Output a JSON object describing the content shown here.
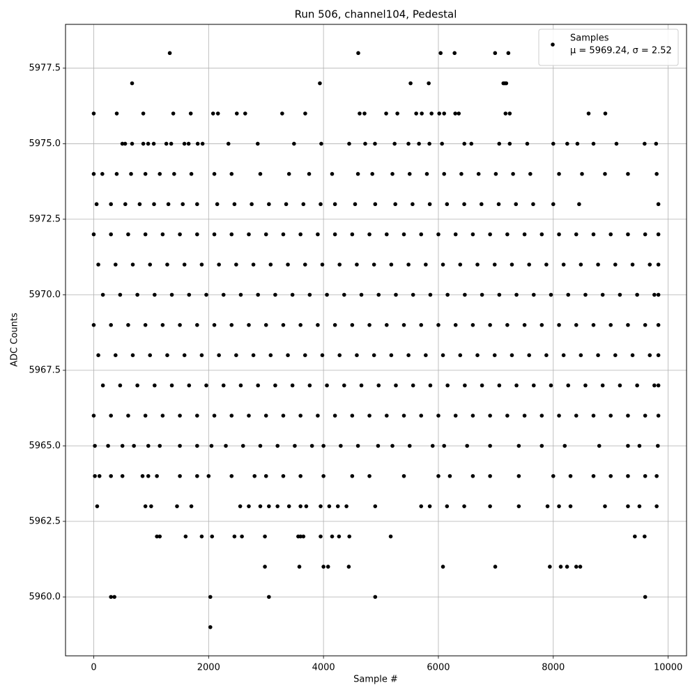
{
  "chart_data": {
    "type": "scatter",
    "title": "Run 506, channel104, Pedestal",
    "xlabel": "Sample #",
    "ylabel": "ADC Counts",
    "xlim": [
      -491,
      10320
    ],
    "ylim": [
      5958.05,
      5978.95
    ],
    "xticks": [
      0,
      2000,
      4000,
      6000,
      8000,
      10000
    ],
    "yticks": [
      {
        "value": 5960,
        "label": "5960.0"
      },
      {
        "value": 5962.5,
        "label": "5962.5"
      },
      {
        "value": 5965,
        "label": "5965.0"
      },
      {
        "value": 5967.5,
        "label": "5967.5"
      },
      {
        "value": 5970,
        "label": "5970.0"
      },
      {
        "value": 5972.5,
        "label": "5972.5"
      },
      {
        "value": 5975,
        "label": "5975.0"
      },
      {
        "value": 5977.5,
        "label": "5977.5"
      }
    ],
    "grid": true,
    "legend": "upper right",
    "legend_stats": "μ = 5969.24, σ = 2.52",
    "series": [
      {
        "name": "Samples",
        "color": "#000000",
        "x": [
          1324,
          4605,
          6039,
          6282,
          6987,
          7218,
          668,
          3937,
          5516,
          5832,
          7132,
          7157,
          7181,
          0,
          401,
          863,
          1385,
          1689,
          2078,
          2163,
          2491,
          2637,
          3281,
          3682,
          4629,
          4714,
          5091,
          5286,
          5614,
          5711,
          5881,
          6015,
          6100,
          6294,
          6355,
          7169,
          7242,
          8615,
          8906,
          498,
          547,
          668,
          863,
          948,
          1045,
          1264,
          1349,
          1579,
          1652,
          1810,
          1895,
          2345,
          2855,
          3487,
          3961,
          4447,
          4726,
          4896,
          5238,
          5479,
          5662,
          5844,
          6063,
          6452,
          6574,
          7059,
          7242,
          7547,
          8000,
          8243,
          8420,
          8700,
          9100,
          9590,
          9790,
          0,
          150,
          400,
          650,
          900,
          1150,
          1400,
          1700,
          2100,
          2400,
          2900,
          3400,
          3750,
          4150,
          4600,
          4850,
          5200,
          5500,
          5800,
          6100,
          6400,
          6700,
          7000,
          7300,
          7600,
          8100,
          8500,
          8900,
          9300,
          9800,
          50,
          300,
          550,
          800,
          1050,
          1300,
          1550,
          1800,
          2150,
          2450,
          2750,
          3050,
          3350,
          3650,
          3950,
          4200,
          4550,
          4900,
          5250,
          5550,
          5850,
          6150,
          6450,
          6750,
          7050,
          7350,
          7650,
          8000,
          8450,
          9830,
          0,
          300,
          600,
          900,
          1200,
          1500,
          1800,
          2100,
          2400,
          2700,
          3000,
          3300,
          3600,
          3900,
          4200,
          4500,
          4800,
          5100,
          5400,
          5700,
          6000,
          6300,
          6600,
          6900,
          7200,
          7500,
          7800,
          8100,
          8400,
          8700,
          9000,
          9300,
          9600,
          9830,
          80,
          380,
          680,
          980,
          1280,
          1580,
          1880,
          2180,
          2480,
          2780,
          3080,
          3380,
          3680,
          3980,
          4280,
          4580,
          4880,
          5180,
          5480,
          5780,
          6080,
          6380,
          6680,
          6980,
          7280,
          7580,
          7880,
          8180,
          8480,
          8780,
          9080,
          9380,
          9680,
          9830,
          160,
          460,
          760,
          1060,
          1360,
          1660,
          1960,
          2260,
          2560,
          2860,
          3160,
          3460,
          3760,
          4060,
          4360,
          4660,
          4960,
          5260,
          5560,
          5860,
          6160,
          6460,
          6760,
          7060,
          7360,
          7660,
          7960,
          8260,
          8560,
          8860,
          9160,
          9460,
          9760,
          9830,
          0,
          300,
          600,
          900,
          1200,
          1500,
          1800,
          2100,
          2400,
          2700,
          3000,
          3300,
          3600,
          3900,
          4200,
          4500,
          4800,
          5100,
          5400,
          5700,
          6000,
          6300,
          6600,
          6900,
          7200,
          7500,
          7800,
          8100,
          8400,
          8700,
          9000,
          9300,
          9600,
          9830,
          80,
          380,
          680,
          980,
          1280,
          1580,
          1880,
          2180,
          2480,
          2780,
          3080,
          3380,
          3680,
          3980,
          4280,
          4580,
          4880,
          5180,
          5480,
          5780,
          6080,
          6380,
          6680,
          6980,
          7280,
          7580,
          7880,
          8180,
          8480,
          8780,
          9080,
          9380,
          9680,
          9830,
          160,
          460,
          760,
          1060,
          1360,
          1660,
          1960,
          2260,
          2560,
          2860,
          3160,
          3460,
          3760,
          4060,
          4360,
          4660,
          4960,
          5260,
          5560,
          5860,
          6160,
          6460,
          6760,
          7060,
          7360,
          7660,
          7960,
          8260,
          8560,
          8860,
          9160,
          9460,
          9760,
          9830,
          0,
          300,
          600,
          900,
          1200,
          1500,
          1800,
          2100,
          2400,
          2700,
          3000,
          3300,
          3600,
          3900,
          4200,
          4500,
          4800,
          5100,
          5400,
          5700,
          6000,
          6300,
          6600,
          6900,
          7200,
          7500,
          7800,
          8100,
          8400,
          8700,
          9000,
          9300,
          9600,
          9830,
          20,
          250,
          500,
          700,
          950,
          1150,
          1500,
          1800,
          2050,
          2300,
          2600,
          2900,
          3200,
          3500,
          3800,
          4000,
          4300,
          4600,
          4950,
          5200,
          5500,
          5900,
          6100,
          6500,
          6900,
          7400,
          7800,
          8200,
          8800,
          9300,
          9500,
          9820,
          20,
          100,
          300,
          500,
          850,
          950,
          1100,
          1500,
          1800,
          2000,
          2400,
          2800,
          3000,
          3300,
          3600,
          4000,
          4500,
          4800,
          5400,
          6000,
          6200,
          6600,
          6900,
          7400,
          8000,
          8300,
          8700,
          9000,
          9300,
          9600,
          9800,
          60,
          900,
          1000,
          1450,
          1700,
          2550,
          2700,
          2900,
          3050,
          3200,
          3400,
          3600,
          3700,
          3950,
          4100,
          4250,
          4400,
          4900,
          5700,
          5850,
          6150,
          6450,
          6900,
          7400,
          7900,
          8100,
          8300,
          8900,
          9300,
          9500,
          9800,
          1100,
          1150,
          1600,
          1880,
          2060,
          2450,
          2580,
          2980,
          3560,
          3600,
          3650,
          3950,
          4150,
          4270,
          4450,
          5170,
          9420,
          9590,
          2980,
          3580,
          4000,
          4080,
          4440,
          6080,
          6990,
          7940,
          8130,
          8240,
          8400,
          8470,
          300,
          360,
          2030,
          3050,
          4900,
          9600,
          2030
        ],
        "values": [
          5978,
          5978,
          5978,
          5978,
          5978,
          5978,
          5977,
          5977,
          5977,
          5977,
          5977,
          5977,
          5977,
          5976,
          5976,
          5976,
          5976,
          5976,
          5976,
          5976,
          5976,
          5976,
          5976,
          5976,
          5976,
          5976,
          5976,
          5976,
          5976,
          5976,
          5976,
          5976,
          5976,
          5976,
          5976,
          5976,
          5976,
          5976,
          5976,
          5975,
          5975,
          5975,
          5975,
          5975,
          5975,
          5975,
          5975,
          5975,
          5975,
          5975,
          5975,
          5975,
          5975,
          5975,
          5975,
          5975,
          5975,
          5975,
          5975,
          5975,
          5975,
          5975,
          5975,
          5975,
          5975,
          5975,
          5975,
          5975,
          5975,
          5975,
          5975,
          5975,
          5975,
          5975,
          5975,
          5974,
          5974,
          5974,
          5974,
          5974,
          5974,
          5974,
          5974,
          5974,
          5974,
          5974,
          5974,
          5974,
          5974,
          5974,
          5974,
          5974,
          5974,
          5974,
          5974,
          5974,
          5974,
          5974,
          5974,
          5974,
          5974,
          5974,
          5974,
          5974,
          5974,
          5973,
          5973,
          5973,
          5973,
          5973,
          5973,
          5973,
          5973,
          5973,
          5973,
          5973,
          5973,
          5973,
          5973,
          5973,
          5973,
          5973,
          5973,
          5973,
          5973,
          5973,
          5973,
          5973,
          5973,
          5973,
          5973,
          5973,
          5973,
          5973,
          5973,
          5972,
          5972,
          5972,
          5972,
          5972,
          5972,
          5972,
          5972,
          5972,
          5972,
          5972,
          5972,
          5972,
          5972,
          5972,
          5972,
          5972,
          5972,
          5972,
          5972,
          5972,
          5972,
          5972,
          5972,
          5972,
          5972,
          5972,
          5972,
          5972,
          5972,
          5972,
          5972,
          5972,
          5972,
          5971,
          5971,
          5971,
          5971,
          5971,
          5971,
          5971,
          5971,
          5971,
          5971,
          5971,
          5971,
          5971,
          5971,
          5971,
          5971,
          5971,
          5971,
          5971,
          5971,
          5971,
          5971,
          5971,
          5971,
          5971,
          5971,
          5971,
          5971,
          5971,
          5971,
          5971,
          5971,
          5971,
          5971,
          5970,
          5970,
          5970,
          5970,
          5970,
          5970,
          5970,
          5970,
          5970,
          5970,
          5970,
          5970,
          5970,
          5970,
          5970,
          5970,
          5970,
          5970,
          5970,
          5970,
          5970,
          5970,
          5970,
          5970,
          5970,
          5970,
          5970,
          5970,
          5970,
          5970,
          5970,
          5970,
          5970,
          5970,
          5969,
          5969,
          5969,
          5969,
          5969,
          5969,
          5969,
          5969,
          5969,
          5969,
          5969,
          5969,
          5969,
          5969,
          5969,
          5969,
          5969,
          5969,
          5969,
          5969,
          5969,
          5969,
          5969,
          5969,
          5969,
          5969,
          5969,
          5969,
          5969,
          5969,
          5969,
          5969,
          5969,
          5969,
          5968,
          5968,
          5968,
          5968,
          5968,
          5968,
          5968,
          5968,
          5968,
          5968,
          5968,
          5968,
          5968,
          5968,
          5968,
          5968,
          5968,
          5968,
          5968,
          5968,
          5968,
          5968,
          5968,
          5968,
          5968,
          5968,
          5968,
          5968,
          5968,
          5968,
          5968,
          5968,
          5968,
          5968,
          5967,
          5967,
          5967,
          5967,
          5967,
          5967,
          5967,
          5967,
          5967,
          5967,
          5967,
          5967,
          5967,
          5967,
          5967,
          5967,
          5967,
          5967,
          5967,
          5967,
          5967,
          5967,
          5967,
          5967,
          5967,
          5967,
          5967,
          5967,
          5967,
          5967,
          5967,
          5967,
          5967,
          5967,
          5966,
          5966,
          5966,
          5966,
          5966,
          5966,
          5966,
          5966,
          5966,
          5966,
          5966,
          5966,
          5966,
          5966,
          5966,
          5966,
          5966,
          5966,
          5966,
          5966,
          5966,
          5966,
          5966,
          5966,
          5966,
          5966,
          5966,
          5966,
          5966,
          5966,
          5966,
          5966,
          5966,
          5966,
          5965,
          5965,
          5965,
          5965,
          5965,
          5965,
          5965,
          5965,
          5965,
          5965,
          5965,
          5965,
          5965,
          5965,
          5965,
          5965,
          5965,
          5965,
          5965,
          5965,
          5965,
          5965,
          5965,
          5965,
          5965,
          5965,
          5965,
          5965,
          5965,
          5965,
          5965,
          5965,
          5964,
          5964,
          5964,
          5964,
          5964,
          5964,
          5964,
          5964,
          5964,
          5964,
          5964,
          5964,
          5964,
          5964,
          5964,
          5964,
          5964,
          5964,
          5964,
          5964,
          5964,
          5964,
          5964,
          5964,
          5964,
          5964,
          5964,
          5964,
          5964,
          5964,
          5964,
          5963,
          5963,
          5963,
          5963,
          5963,
          5963,
          5963,
          5963,
          5963,
          5963,
          5963,
          5963,
          5963,
          5963,
          5963,
          5963,
          5963,
          5963,
          5963,
          5963,
          5963,
          5963,
          5963,
          5963,
          5963,
          5963,
          5963,
          5963,
          5963,
          5963,
          5963,
          5962,
          5962,
          5962,
          5962,
          5962,
          5962,
          5962,
          5962,
          5962,
          5962,
          5962,
          5962,
          5962,
          5962,
          5962,
          5962,
          5962,
          5962,
          5961,
          5961,
          5961,
          5961,
          5961,
          5961,
          5961,
          5961,
          5961,
          5961,
          5961,
          5961,
          5960,
          5960,
          5960,
          5960,
          5960,
          5960,
          5959
        ]
      }
    ]
  }
}
